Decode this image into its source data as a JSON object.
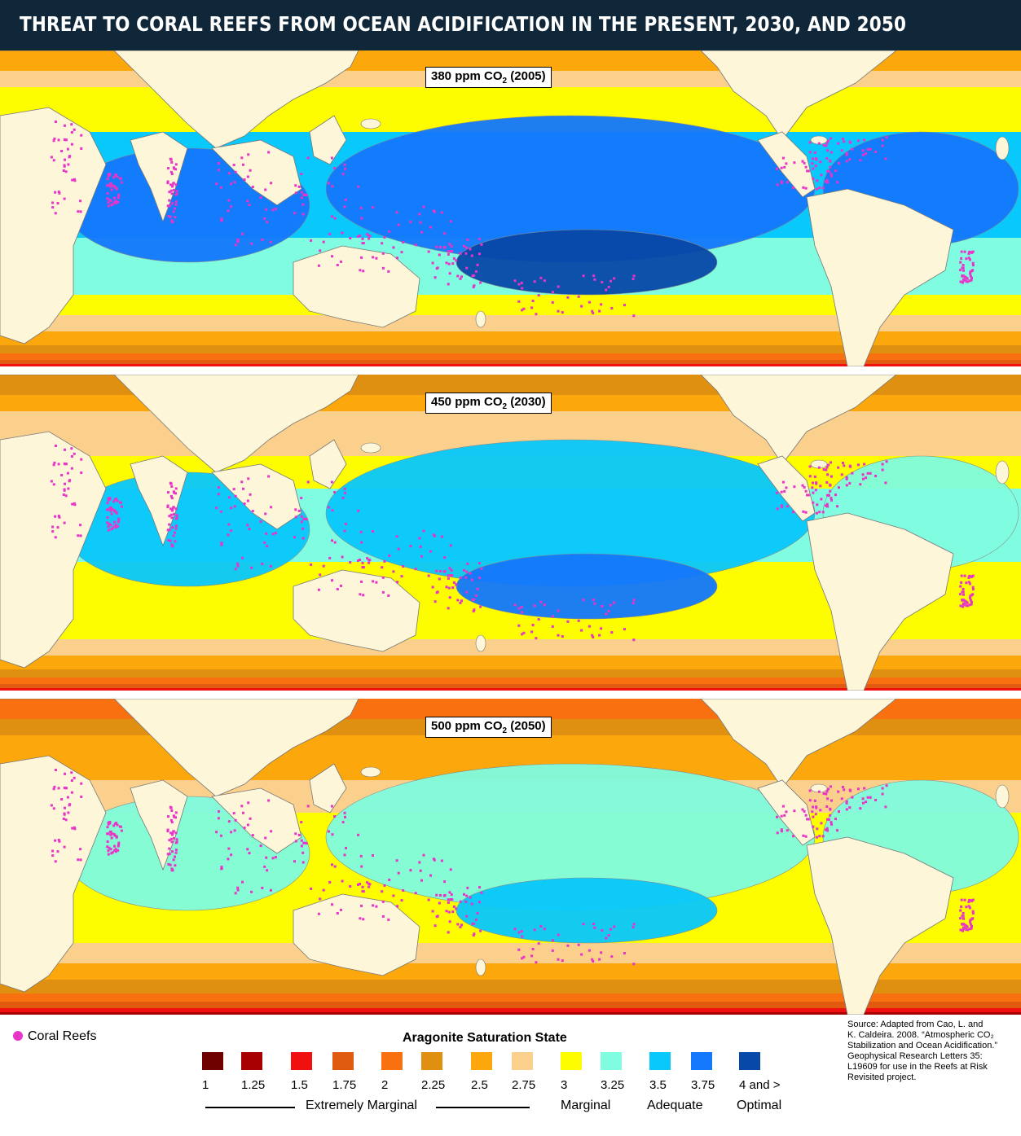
{
  "title": "THREAT TO CORAL REEFS FROM OCEAN ACIDIFICATION IN THE PRESENT, 2030, AND 2050",
  "panels": [
    {
      "label_pre": "380 ppm CO",
      "label_sub": "2",
      "label_post": " (2005)",
      "scenario": 0
    },
    {
      "label_pre": "450 ppm CO",
      "label_sub": "2",
      "label_post": " (2030)",
      "scenario": 1
    },
    {
      "label_pre": "500 ppm CO",
      "label_sub": "2",
      "label_post": " (2050)",
      "scenario": 2
    }
  ],
  "legend": {
    "reefs_label": "Coral Reefs",
    "reefs_color": "#e834c8",
    "title": "Aragonite Saturation State",
    "items": [
      {
        "value": "1",
        "color": "#6e0000"
      },
      {
        "value": "1.25",
        "color": "#a80000"
      },
      {
        "value": "1.5",
        "color": "#f01010"
      },
      {
        "value": "1.75",
        "color": "#e05a10"
      },
      {
        "value": "2",
        "color": "#f87010"
      },
      {
        "value": "2.25",
        "color": "#e09010"
      },
      {
        "value": "2.5",
        "color": "#fca70c"
      },
      {
        "value": "2.75",
        "color": "#fbcf8c"
      },
      {
        "value": "3",
        "color": "#fdfd00"
      },
      {
        "value": "3.25",
        "color": "#80fce0"
      },
      {
        "value": "3.5",
        "color": "#08c8fc"
      },
      {
        "value": "3.75",
        "color": "#1478fc"
      },
      {
        "value": "4 and >",
        "color": "#0848a8"
      }
    ],
    "categories": [
      {
        "label": "Extremely Marginal"
      },
      {
        "label": "Marginal"
      },
      {
        "label": "Adequate"
      },
      {
        "label": "Optimal"
      }
    ]
  },
  "source_lines": [
    "Source: Adapted from Cao, L. and",
    "K. Caldeira. 2008. “Atmospheric CO₂",
    "Stabilization and Ocean Acidification.”",
    "Geophysical Research Letters 35:",
    "L19609  for use in the Reefs at Risk",
    "Revisited project."
  ],
  "colors": {
    "land": "#fdf6d8",
    "title_bar": "#10273a"
  }
}
